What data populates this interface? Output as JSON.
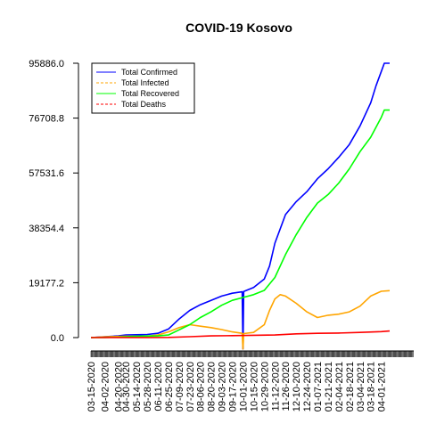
{
  "chart_data": {
    "type": "line",
    "title": "COVID-19 Kosovo",
    "xlabel": "",
    "ylabel": "",
    "y_ticks": [
      "0.0",
      "19177.2",
      "38354.4",
      "57531.6",
      "76708.8",
      "95886.0"
    ],
    "ylim": [
      0,
      95886
    ],
    "x_ticks": [
      "03-15-2020",
      "04-02-2020",
      "04-20-2020",
      "04-30-2020",
      "05-14-2020",
      "05-28-2020",
      "06-11-2020",
      "06-25-2020",
      "07-09-2020",
      "07-23-2020",
      "08-06-2020",
      "08-20-2020",
      "09-03-2020",
      "09-17-2020",
      "10-01-2020",
      "10-15-2020",
      "10-29-2020",
      "11-12-2020",
      "11-26-2020",
      "12-10-2020",
      "12-24-2020",
      "01-07-2021",
      "01-21-2021",
      "02-04-2021",
      "02-18-2021",
      "03-04-2021",
      "03-18-2021",
      "04-01-2021"
    ],
    "x_range": [
      "03-15-2020",
      "04-12-2021"
    ],
    "legend": {
      "placement": "top-left"
    },
    "grid": false,
    "series": [
      {
        "name": "Total Confirmed",
        "color": "#0000ff",
        "style": "solid",
        "points": [
          [
            "03-15-2020",
            0
          ],
          [
            "04-02-2020",
            300
          ],
          [
            "04-20-2020",
            600
          ],
          [
            "04-30-2020",
            900
          ],
          [
            "05-14-2020",
            1000
          ],
          [
            "05-28-2020",
            1100
          ],
          [
            "06-11-2020",
            1500
          ],
          [
            "06-25-2020",
            3000
          ],
          [
            "07-09-2020",
            6500
          ],
          [
            "07-23-2020",
            9500
          ],
          [
            "08-06-2020",
            11500
          ],
          [
            "08-20-2020",
            13000
          ],
          [
            "09-03-2020",
            14500
          ],
          [
            "09-17-2020",
            15500
          ],
          [
            "09-30-2020",
            16000
          ],
          [
            "10-01-2020",
            -4000
          ],
          [
            "10-02-2020",
            16100
          ],
          [
            "10-15-2020",
            17500
          ],
          [
            "10-29-2020",
            20500
          ],
          [
            "11-05-2020",
            25000
          ],
          [
            "11-12-2020",
            33000
          ],
          [
            "11-26-2020",
            43000
          ],
          [
            "12-10-2020",
            47500
          ],
          [
            "12-24-2020",
            51000
          ],
          [
            "01-07-2021",
            55500
          ],
          [
            "01-21-2021",
            59000
          ],
          [
            "02-04-2021",
            63000
          ],
          [
            "02-18-2021",
            67500
          ],
          [
            "03-04-2021",
            74000
          ],
          [
            "03-18-2021",
            82000
          ],
          [
            "03-25-2021",
            88000
          ],
          [
            "04-01-2021",
            93000
          ],
          [
            "04-05-2021",
            95886
          ],
          [
            "04-12-2021",
            95886
          ]
        ]
      },
      {
        "name": "Total Infected",
        "color": "#ffa500",
        "style": "dashed",
        "points": [
          [
            "03-15-2020",
            0
          ],
          [
            "04-02-2020",
            250
          ],
          [
            "04-20-2020",
            400
          ],
          [
            "04-30-2020",
            500
          ],
          [
            "05-14-2020",
            450
          ],
          [
            "05-28-2020",
            500
          ],
          [
            "06-11-2020",
            900
          ],
          [
            "06-25-2020",
            2000
          ],
          [
            "07-09-2020",
            3500
          ],
          [
            "07-23-2020",
            4500
          ],
          [
            "08-06-2020",
            4000
          ],
          [
            "08-20-2020",
            3500
          ],
          [
            "09-03-2020",
            2800
          ],
          [
            "09-17-2020",
            2000
          ],
          [
            "09-30-2020",
            1500
          ],
          [
            "10-01-2020",
            -4000
          ],
          [
            "10-02-2020",
            1400
          ],
          [
            "10-15-2020",
            1800
          ],
          [
            "10-29-2020",
            4500
          ],
          [
            "11-05-2020",
            9500
          ],
          [
            "11-12-2020",
            13500
          ],
          [
            "11-19-2020",
            15000
          ],
          [
            "11-26-2020",
            14500
          ],
          [
            "12-10-2020",
            12000
          ],
          [
            "12-24-2020",
            9000
          ],
          [
            "01-07-2021",
            7000
          ],
          [
            "01-21-2021",
            7800
          ],
          [
            "02-04-2021",
            8200
          ],
          [
            "02-18-2021",
            9000
          ],
          [
            "03-04-2021",
            11000
          ],
          [
            "03-18-2021",
            14500
          ],
          [
            "04-01-2021",
            16200
          ],
          [
            "04-12-2021",
            16400
          ]
        ]
      },
      {
        "name": "Total Recovered",
        "color": "#00ff00",
        "style": "solid",
        "points": [
          [
            "03-15-2020",
            0
          ],
          [
            "04-02-2020",
            30
          ],
          [
            "04-20-2020",
            150
          ],
          [
            "04-30-2020",
            300
          ],
          [
            "05-14-2020",
            500
          ],
          [
            "05-28-2020",
            550
          ],
          [
            "06-11-2020",
            600
          ],
          [
            "06-25-2020",
            900
          ],
          [
            "07-09-2020",
            2700
          ],
          [
            "07-23-2020",
            4500
          ],
          [
            "08-06-2020",
            7000
          ],
          [
            "08-20-2020",
            9000
          ],
          [
            "09-03-2020",
            11300
          ],
          [
            "09-17-2020",
            13000
          ],
          [
            "10-01-2020",
            14000
          ],
          [
            "10-15-2020",
            15000
          ],
          [
            "10-29-2020",
            16500
          ],
          [
            "11-12-2020",
            21000
          ],
          [
            "11-26-2020",
            29000
          ],
          [
            "12-10-2020",
            36000
          ],
          [
            "12-24-2020",
            42000
          ],
          [
            "01-07-2021",
            47000
          ],
          [
            "01-21-2021",
            50000
          ],
          [
            "02-04-2021",
            54000
          ],
          [
            "02-18-2021",
            59000
          ],
          [
            "03-04-2021",
            65000
          ],
          [
            "03-18-2021",
            70000
          ],
          [
            "04-01-2021",
            77000
          ],
          [
            "04-05-2021",
            79500
          ],
          [
            "04-12-2021",
            79500
          ]
        ]
      },
      {
        "name": "Total Deaths",
        "color": "#ff0000",
        "style": "dashed",
        "points": [
          [
            "03-15-2020",
            0
          ],
          [
            "04-20-2020",
            30
          ],
          [
            "05-28-2020",
            30
          ],
          [
            "06-25-2020",
            50
          ],
          [
            "07-23-2020",
            300
          ],
          [
            "08-20-2020",
            600
          ],
          [
            "09-17-2020",
            700
          ],
          [
            "10-15-2020",
            800
          ],
          [
            "11-12-2020",
            900
          ],
          [
            "12-10-2020",
            1300
          ],
          [
            "01-07-2021",
            1500
          ],
          [
            "02-04-2021",
            1600
          ],
          [
            "03-04-2021",
            1800
          ],
          [
            "04-01-2021",
            2100
          ],
          [
            "04-12-2021",
            2300
          ]
        ]
      }
    ]
  }
}
